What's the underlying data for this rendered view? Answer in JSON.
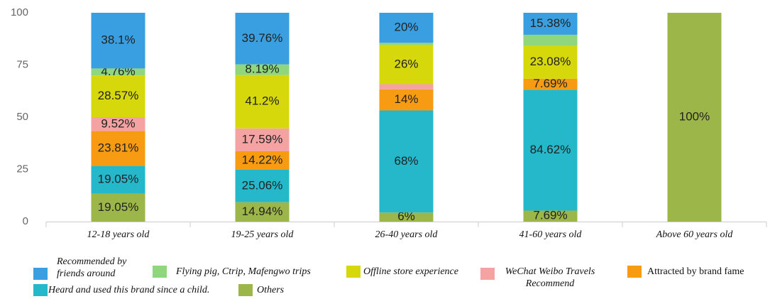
{
  "chart_data": {
    "type": "bar",
    "stacking": "percent",
    "categories": [
      "12-18 years old",
      "19-25 years old",
      "26-40 years old",
      "41-60 years old",
      "Above 60 years old"
    ],
    "ylim": [
      0,
      100
    ],
    "yticks": [
      0,
      25,
      50,
      75,
      100
    ],
    "grid": false,
    "series": [
      {
        "name": "Recommended by friends around",
        "color": "#3a9fe0",
        "values": [
          38.1,
          39.76,
          20,
          15.38,
          0
        ],
        "value_labels": [
          "38.1%",
          "39.76%",
          "20%",
          "15.38%",
          null
        ]
      },
      {
        "name": "Flying pig, Ctrip, Mafengwo trips",
        "color": "#90d67c",
        "values": [
          4.76,
          8.19,
          1.5,
          7.69,
          0
        ],
        "value_labels": [
          "4.76%",
          "8.19%",
          null,
          null,
          null
        ]
      },
      {
        "name": "Offline store experience",
        "color": "#d6d80c",
        "values": [
          28.57,
          41.2,
          26,
          23.08,
          0
        ],
        "value_labels": [
          "28.57%",
          "41.2%",
          "26%",
          "23.08%",
          null
        ]
      },
      {
        "name": "WeChat Weibo Travels Recommend",
        "color": "#f4a2a2",
        "values": [
          9.52,
          17.59,
          3.5,
          0,
          0
        ],
        "value_labels": [
          "9.52%",
          "17.59%",
          null,
          null,
          null
        ]
      },
      {
        "name": "Attracted by brand fame",
        "color": "#f79b12",
        "values": [
          23.81,
          14.22,
          14,
          7.69,
          0
        ],
        "value_labels": [
          "23.81%",
          "14.22%",
          "14%",
          "7.69%",
          null
        ]
      },
      {
        "name": "Heard and used this brand since a child.",
        "color": "#24b8ca",
        "values": [
          19.05,
          25.06,
          68,
          84.62,
          0
        ],
        "value_labels": [
          "19.05%",
          "25.06%",
          "68%",
          "84.62%",
          null
        ]
      },
      {
        "name": "Others",
        "color": "#9db64a",
        "values": [
          19.05,
          14.94,
          6,
          7.69,
          100
        ],
        "value_labels": [
          "19.05%",
          "14.94%",
          "6%",
          "7.69%",
          "100%"
        ]
      }
    ]
  }
}
